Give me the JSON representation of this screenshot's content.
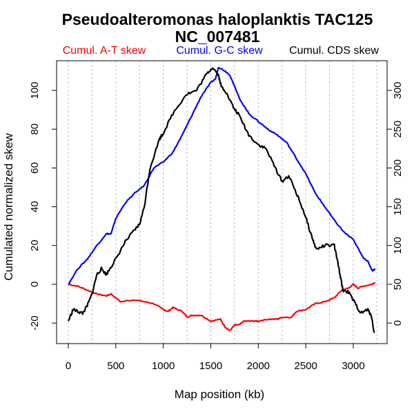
{
  "chart_data": {
    "type": "line",
    "title": [
      "Pseudoalteromonas haloplanktis TAC125",
      "NC_007481"
    ],
    "xlabel": "Map position (kb)",
    "ylabel": "Cumulated normalized skew",
    "xlim": [
      0,
      3250
    ],
    "ylim_left": [
      -30,
      115
    ],
    "ylim_right": [
      -25,
      337.5
    ],
    "x_ticks": [
      "0",
      "500",
      "1000",
      "1500",
      "2000",
      "2500",
      "3000"
    ],
    "y_ticks_left": [
      "-20",
      "0",
      "20",
      "40",
      "60",
      "80",
      "100"
    ],
    "y_ticks_right": [
      "0",
      "50",
      "100",
      "150",
      "200",
      "250",
      "300"
    ],
    "grid": "vertical dashed every 250 kb",
    "legend": [
      {
        "label": "Cumul. A-T skew",
        "color": "#ff0000"
      },
      {
        "label": "Cumul. G-C skew",
        "color": "#0000ff"
      },
      {
        "label": "Cumul. CDS skew",
        "color": "#000000"
      }
    ],
    "series": [
      {
        "name": "Cumul. A-T skew",
        "axis": "left",
        "color": "#ff0000",
        "x": [
          0,
          100,
          200,
          300,
          400,
          450,
          550,
          700,
          800,
          900,
          1000,
          1050,
          1100,
          1200,
          1250,
          1300,
          1400,
          1500,
          1600,
          1650,
          1700,
          1750,
          1800,
          1850,
          1950,
          2000,
          2100,
          2200,
          2250,
          2350,
          2400,
          2500,
          2600,
          2700,
          2800,
          2880,
          2950,
          3000,
          3050,
          3100,
          3200,
          3230
        ],
        "y": [
          0,
          -1,
          -3,
          -5,
          -6,
          -5,
          -9,
          -8,
          -9,
          -10,
          -13,
          -14,
          -12,
          -14,
          -17,
          -16,
          -16,
          -19,
          -18,
          -22,
          -24,
          -21,
          -21,
          -19,
          -19,
          -19,
          -18,
          -18,
          -17,
          -17,
          -14,
          -13,
          -10,
          -9,
          -7,
          -3,
          -2,
          0,
          -2,
          -1,
          0,
          1
        ]
      },
      {
        "name": "Cumul. G-C skew",
        "axis": "left",
        "color": "#0000ff",
        "x": [
          0,
          100,
          200,
          300,
          400,
          450,
          500,
          600,
          700,
          800,
          900,
          1000,
          1100,
          1200,
          1300,
          1400,
          1500,
          1550,
          1580,
          1650,
          1700,
          1800,
          1900,
          2000,
          2100,
          2200,
          2300,
          2400,
          2500,
          2600,
          2700,
          2800,
          2900,
          3000,
          3100,
          3150,
          3200,
          3230
        ],
        "y": [
          0,
          8,
          13,
          20,
          26,
          26,
          34,
          42,
          47,
          51,
          60,
          63,
          68,
          77,
          87,
          97,
          104,
          106,
          112,
          110,
          108,
          96,
          88,
          84,
          80,
          77,
          73,
          65,
          57,
          47,
          40,
          33,
          27,
          23,
          14,
          12,
          7,
          8
        ]
      },
      {
        "name": "Cumul. CDS skew",
        "axis": "right",
        "color": "#000000",
        "x": [
          0,
          50,
          100,
          150,
          200,
          250,
          300,
          350,
          400,
          450,
          500,
          600,
          700,
          750,
          800,
          860,
          960,
          1000,
          1100,
          1240,
          1350,
          1450,
          1520,
          1580,
          1610,
          1650,
          1740,
          1800,
          1900,
          2000,
          2080,
          2180,
          2250,
          2320,
          2410,
          2490,
          2560,
          2610,
          2700,
          2800,
          2850,
          2890,
          2950,
          3020,
          3080,
          3150,
          3190,
          3220
        ],
        "y": [
          2.5,
          17.5,
          15,
          12.5,
          22.5,
          37.5,
          62.5,
          70,
          62.5,
          72.5,
          82.5,
          105,
          120,
          127.5,
          150,
          200,
          237.5,
          245,
          270,
          295,
          300,
          320,
          330,
          320,
          305,
          300,
          277.5,
          267.5,
          242.5,
          230,
          225,
          200,
          182.5,
          190,
          165,
          140,
          112.5,
          95,
          100,
          100,
          70,
          42.5,
          40,
          25,
          12.5,
          17.5,
          10,
          -12.5
        ]
      }
    ]
  }
}
